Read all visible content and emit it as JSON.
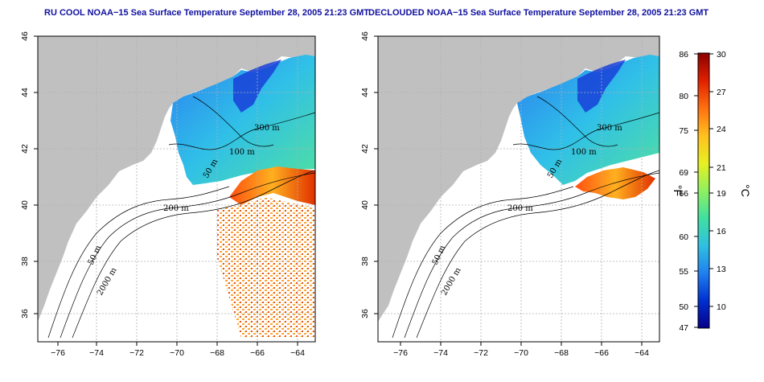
{
  "panels": [
    {
      "title": "RU COOL NOAA−15 Sea Surface Temperature September 28, 2005 21:23 GMT",
      "contour_labels": [
        "300 m",
        "100 m",
        "50 m",
        "200 m",
        "50 m",
        "2000 m"
      ]
    },
    {
      "title": "DECLOUDED NOAA−15 Sea Surface Temperature September 28, 2005 21:23 GMT",
      "contour_labels": [
        "300 m",
        "100 m",
        "50 m",
        "200 m",
        "50 m",
        "2000 m"
      ]
    }
  ],
  "axes": {
    "x_ticks": [
      "−76",
      "−74",
      "−72",
      "−70",
      "−68",
      "−66",
      "−64"
    ],
    "y_ticks": [
      "46",
      "44",
      "42",
      "40",
      "38",
      "36"
    ]
  },
  "colorbar": {
    "fahrenheit_ticks": [
      "86",
      "80",
      "75",
      "69",
      "66",
      "60",
      "55",
      "50",
      "47"
    ],
    "celsius_ticks": [
      "30",
      "27",
      "24",
      "21",
      "19",
      "16",
      "13",
      "10"
    ],
    "fahrenheit_unit": "°F",
    "celsius_unit": "°C",
    "colors": [
      "#08008a",
      "#0030d0",
      "#2080f0",
      "#30c0e0",
      "#40e0a0",
      "#90f060",
      "#e8f020",
      "#ffc020",
      "#ff7010",
      "#e02000",
      "#8a0000"
    ]
  },
  "colors": {
    "title": "#1010a0",
    "land": "#c0c0c0",
    "grid": "#b0b0b0"
  }
}
